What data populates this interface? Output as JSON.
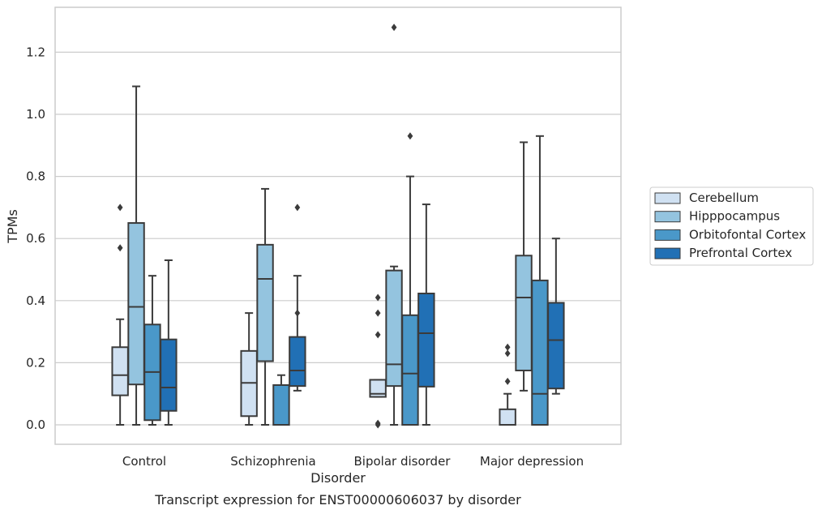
{
  "chart_data": {
    "type": "boxplot",
    "xlabel": "Disorder",
    "ylabel": "TPMs",
    "caption": "Transcript expression for ENST00000606037 by disorder",
    "ylim": [
      -0.062,
      1.35
    ],
    "yticks": [
      "0.0",
      "0.2",
      "0.4",
      "0.6",
      "0.8",
      "1.0",
      "1.2"
    ],
    "grid": "horizontal",
    "legend_position": "right",
    "categories": [
      "Control",
      "Schizophrenia",
      "Bipolar disorder",
      "Major depression"
    ],
    "series": [
      {
        "name": "Cerebellum",
        "color": "#d0e1f2",
        "boxes": [
          {
            "whislo": 0.0,
            "q1": 0.095,
            "med": 0.16,
            "q3": 0.25,
            "whishi": 0.34,
            "fliers": [
              0.57,
              0.7
            ]
          },
          {
            "whislo": 0.0,
            "q1": 0.028,
            "med": 0.135,
            "q3": 0.238,
            "whishi": 0.36,
            "fliers": []
          },
          {
            "whislo": 0.09,
            "q1": 0.09,
            "med": 0.1,
            "q3": 0.145,
            "whishi": 0.145,
            "fliers": [
              0.0,
              0.005,
              0.29,
              0.36,
              0.41
            ]
          },
          {
            "whislo": 0.0,
            "q1": 0.0,
            "med": 0.0,
            "q3": 0.05,
            "whishi": 0.1,
            "fliers": [
              0.14,
              0.23,
              0.25
            ]
          }
        ]
      },
      {
        "name": "Hipppocampus",
        "color": "#94c4df",
        "boxes": [
          {
            "whislo": 0.0,
            "q1": 0.13,
            "med": 0.38,
            "q3": 0.65,
            "whishi": 1.09,
            "fliers": []
          },
          {
            "whislo": 0.0,
            "q1": 0.205,
            "med": 0.47,
            "q3": 0.58,
            "whishi": 0.76,
            "fliers": []
          },
          {
            "whislo": 0.0,
            "q1": 0.125,
            "med": 0.195,
            "q3": 0.497,
            "whishi": 0.51,
            "fliers": [
              1.28
            ]
          },
          {
            "whislo": 0.11,
            "q1": 0.175,
            "med": 0.41,
            "q3": 0.545,
            "whishi": 0.91,
            "fliers": []
          }
        ]
      },
      {
        "name": "Orbitofontal Cortex",
        "color": "#4a98c9",
        "boxes": [
          {
            "whislo": 0.0,
            "q1": 0.015,
            "med": 0.17,
            "q3": 0.323,
            "whishi": 0.48,
            "fliers": []
          },
          {
            "whislo": 0.0,
            "q1": 0.0,
            "med": 0.0,
            "q3": 0.128,
            "whishi": 0.16,
            "fliers": []
          },
          {
            "whislo": 0.0,
            "q1": 0.0,
            "med": 0.165,
            "q3": 0.353,
            "whishi": 0.8,
            "fliers": [
              0.93
            ]
          },
          {
            "whislo": 0.0,
            "q1": 0.0,
            "med": 0.1,
            "q3": 0.465,
            "whishi": 0.93,
            "fliers": []
          }
        ]
      },
      {
        "name": "Prefrontal Cortex",
        "color": "#2170b5",
        "boxes": [
          {
            "whislo": 0.0,
            "q1": 0.045,
            "med": 0.12,
            "q3": 0.275,
            "whishi": 0.53,
            "fliers": []
          },
          {
            "whislo": 0.11,
            "q1": 0.125,
            "med": 0.175,
            "q3": 0.283,
            "whishi": 0.48,
            "fliers": [
              0.36,
              0.7
            ]
          },
          {
            "whislo": 0.0,
            "q1": 0.123,
            "med": 0.295,
            "q3": 0.423,
            "whishi": 0.71,
            "fliers": []
          },
          {
            "whislo": 0.1,
            "q1": 0.117,
            "med": 0.273,
            "q3": 0.393,
            "whishi": 0.6,
            "fliers": []
          }
        ]
      }
    ]
  },
  "colors": {
    "edge": "#3b3b3b",
    "grid": "#cccccc",
    "frame": "#cccccc",
    "text": "#262626"
  }
}
